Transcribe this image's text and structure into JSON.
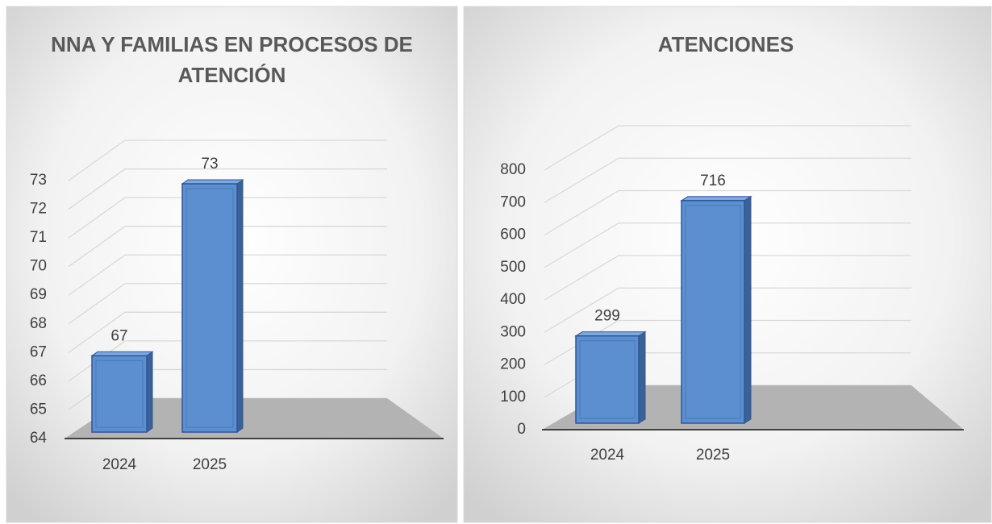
{
  "chart_data": [
    {
      "type": "bar",
      "title": "NNA Y FAMILIAS EN PROCESOS DE ATENCIÓN",
      "categories": [
        "2024",
        "2025"
      ],
      "values": [
        67,
        73
      ],
      "color": "#5b8fd0",
      "ylim": [
        64,
        73
      ],
      "yticks": [
        64,
        65,
        66,
        67,
        68,
        69,
        70,
        71,
        72,
        73
      ],
      "grid": true
    },
    {
      "type": "bar",
      "title": "ATENCIONES",
      "categories": [
        "2024",
        "2025"
      ],
      "values": [
        299,
        716
      ],
      "color": "#5b8fd0",
      "ylim": [
        0,
        800
      ],
      "yticks": [
        0,
        100,
        200,
        300,
        400,
        500,
        600,
        700,
        800
      ],
      "grid": true
    }
  ]
}
